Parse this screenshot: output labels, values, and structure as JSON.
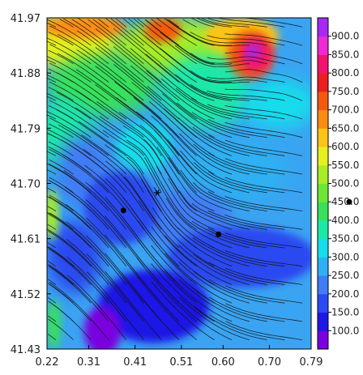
{
  "chart_data": {
    "type": "heatmap",
    "title": "",
    "xlabel": "",
    "ylabel": "",
    "xlim": [
      0.22,
      0.79
    ],
    "ylim": [
      41.43,
      41.97
    ],
    "x_ticks": [
      "0.22",
      "0.31",
      "0.41",
      "0.51",
      "0.60",
      "0.70",
      "0.79"
    ],
    "y_ticks": [
      "41.43",
      "41.52",
      "41.61",
      "41.70",
      "41.79",
      "41.88",
      "41.97"
    ],
    "colorbar": {
      "labels": [
        "100.0",
        "150.0",
        "200.0",
        "250.0",
        "300.0",
        "350.0",
        "400.0",
        "450.0",
        "500.0",
        "550.0",
        "600.0",
        "650.0",
        "700.0",
        "750.0",
        "800.0",
        "850.0",
        "900.0"
      ],
      "colors": [
        "#7a00e0",
        "#1e18e6",
        "#2b4af0",
        "#3f7cf6",
        "#2fb0f2",
        "#17dcec",
        "#1ce8a8",
        "#38e05c",
        "#6ee636",
        "#a8ec26",
        "#e6f01e",
        "#fbc418",
        "#fa8c12",
        "#f25a0e",
        "#ec1e22",
        "#f0146e",
        "#ee2ad2",
        "#a828f4"
      ],
      "vmin": 75,
      "vmax": 925
    },
    "field_regions": [
      {
        "value": 650,
        "x": 0.3,
        "y": 41.955,
        "rx": 0.09,
        "ry": 0.018
      },
      {
        "value": 700,
        "x": 0.47,
        "y": 41.95,
        "rx": 0.04,
        "ry": 0.02
      },
      {
        "value": 600,
        "x": 0.64,
        "y": 41.94,
        "rx": 0.08,
        "ry": 0.03
      },
      {
        "value": 700,
        "x": 0.66,
        "y": 41.91,
        "rx": 0.05,
        "ry": 0.04
      },
      {
        "value": 800,
        "x": 0.67,
        "y": 41.91,
        "rx": 0.035,
        "ry": 0.028
      },
      {
        "value": 900,
        "x": 0.665,
        "y": 41.915,
        "rx": 0.015,
        "ry": 0.012
      },
      {
        "value": 350,
        "x": 0.43,
        "y": 41.76,
        "rx": 0.06,
        "ry": 0.04
      },
      {
        "value": 200,
        "x": 0.38,
        "y": 41.66,
        "rx": 0.08,
        "ry": 0.06
      },
      {
        "value": 200,
        "x": 0.64,
        "y": 41.58,
        "rx": 0.16,
        "ry": 0.05
      },
      {
        "value": 150,
        "x": 0.45,
        "y": 41.5,
        "rx": 0.12,
        "ry": 0.06
      },
      {
        "value": 100,
        "x": 0.34,
        "y": 41.46,
        "rx": 0.04,
        "ry": 0.04
      },
      {
        "value": 450,
        "x": 0.235,
        "y": 41.47,
        "rx": 0.015,
        "ry": 0.04
      },
      {
        "value": 500,
        "x": 0.23,
        "y": 41.65,
        "rx": 0.015,
        "ry": 0.04
      }
    ],
    "markers": [
      {
        "symbol": "dot",
        "x": 0.385,
        "y": 41.656
      },
      {
        "symbol": "dot",
        "x": 0.59,
        "y": 41.617
      },
      {
        "symbol": "star",
        "x": 0.458,
        "y": 41.685
      }
    ],
    "streamlines": true,
    "legend_marker": {
      "symbol": "dot",
      "location": "right of colorbar, near 450.0"
    },
    "grid": false
  }
}
